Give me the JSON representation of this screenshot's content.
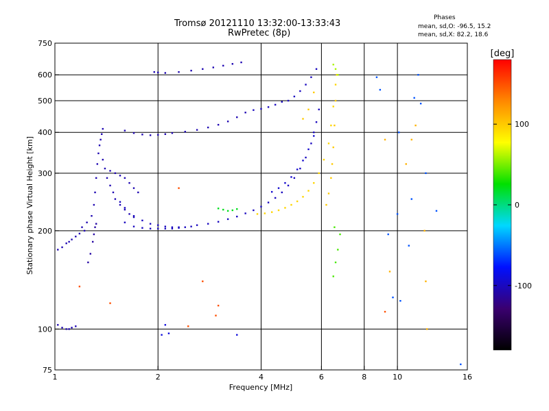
{
  "header": {
    "title": "Tromsø 20121110 13:32:00-13:33:43",
    "subtitle": "RwPretec (8p)"
  },
  "phase_box": {
    "heading": "Phases",
    "line_o": "mean, sd,O: -96.5, 15.2",
    "line_x": "mean, sd,X:  82.2, 18.6"
  },
  "colorbar": {
    "unit": "[deg]",
    "ticks": [
      {
        "value": 100,
        "label": "100"
      },
      {
        "value": 0,
        "label": "0"
      },
      {
        "value": -100,
        "label": "-100"
      }
    ],
    "range": [
      -180,
      180
    ],
    "colors": [
      "#000000",
      "#3a0070",
      "#0010ff",
      "#00d8ff",
      "#00e000",
      "#ffff00",
      "#ff8800",
      "#ff0000"
    ]
  },
  "chart_data": {
    "type": "scatter",
    "xlabel": "Frequency [MHz]",
    "ylabel": "Stationary phase Virtual Height [km]",
    "xscale": "log",
    "yscale": "log",
    "xlim": [
      1,
      16
    ],
    "ylim": [
      75,
      750
    ],
    "x_ticks": [
      {
        "value": 1,
        "label": "1"
      },
      {
        "value": 2,
        "label": "2"
      },
      {
        "value": 4,
        "label": "4"
      },
      {
        "value": 6,
        "label": "6"
      },
      {
        "value": 8,
        "label": "8"
      },
      {
        "value": 10,
        "label": "10"
      },
      {
        "value": 16,
        "label": "16"
      }
    ],
    "y_ticks": [
      {
        "value": 75,
        "label": "75"
      },
      {
        "value": 100,
        "label": "100"
      },
      {
        "value": 200,
        "label": "200"
      },
      {
        "value": 300,
        "label": "300"
      },
      {
        "value": 400,
        "label": "400"
      },
      {
        "value": 500,
        "label": "500"
      },
      {
        "value": 600,
        "label": "600"
      },
      {
        "value": 750,
        "label": "750"
      }
    ],
    "grid_x": [
      2,
      4,
      6,
      8,
      10
    ],
    "grid_y": [
      100,
      200,
      300,
      400,
      500,
      600
    ],
    "grid": true,
    "series": [
      {
        "phase": -105,
        "x": [
          1.02,
          1.05,
          1.08,
          1.1,
          1.12,
          1.15,
          1.18,
          1.22
        ],
        "y": [
          175,
          178,
          183,
          185,
          188,
          192,
          196,
          200
        ]
      },
      {
        "phase": -105,
        "x": [
          1.2,
          1.24,
          1.28,
          1.3,
          1.31,
          1.32,
          1.33,
          1.34,
          1.35,
          1.36,
          1.37,
          1.38
        ],
        "y": [
          205,
          212,
          222,
          240,
          262,
          290,
          320,
          345,
          365,
          380,
          395,
          410
        ]
      },
      {
        "phase": -110,
        "x": [
          1.25,
          1.27,
          1.29,
          1.3,
          1.31,
          1.32
        ],
        "y": [
          160,
          170,
          185,
          195,
          205,
          210
        ]
      },
      {
        "phase": -105,
        "x": [
          1.38,
          1.4,
          1.42,
          1.45,
          1.48,
          1.5,
          1.55,
          1.6,
          1.65,
          1.7
        ],
        "y": [
          330,
          310,
          290,
          275,
          262,
          250,
          240,
          232,
          225,
          220
        ]
      },
      {
        "phase": -105,
        "x": [
          1.45,
          1.5,
          1.55,
          1.6,
          1.65,
          1.7,
          1.75
        ],
        "y": [
          305,
          300,
          295,
          290,
          280,
          270,
          262
        ]
      },
      {
        "phase": -100,
        "x": [
          1.6,
          1.7,
          1.8,
          1.9,
          2.0,
          2.1,
          2.2,
          2.3,
          2.4,
          2.5,
          2.6,
          2.8,
          3.0,
          3.2,
          3.4,
          3.6,
          3.8,
          4.0,
          4.2,
          4.4,
          4.6,
          4.8,
          5.0,
          5.2,
          5.4,
          5.6,
          5.7,
          5.8,
          5.9
        ],
        "y": [
          212,
          206,
          204,
          203,
          203,
          203,
          203,
          204,
          205,
          206,
          208,
          210,
          213,
          217,
          221,
          226,
          231,
          237,
          244,
          252,
          262,
          275,
          290,
          310,
          335,
          370,
          400,
          430,
          470
        ]
      },
      {
        "phase": -100,
        "x": [
          1.55,
          1.6,
          1.7,
          1.8,
          1.9,
          2.0,
          2.1,
          2.2,
          2.3
        ],
        "y": [
          245,
          235,
          222,
          215,
          210,
          208,
          206,
          205,
          205
        ]
      },
      {
        "phase": -95,
        "x": [
          4.3,
          4.5,
          4.7,
          4.9,
          5.1,
          5.3,
          5.5,
          5.7
        ],
        "y": [
          263,
          270,
          280,
          292,
          308,
          328,
          355,
          390
        ]
      },
      {
        "phase": -105,
        "x": [
          1.6,
          1.7,
          1.8,
          1.9,
          2.0,
          2.1,
          2.2,
          2.4,
          2.6,
          2.8,
          3.0,
          3.2,
          3.4,
          3.6
        ],
        "y": [
          405,
          398,
          394,
          392,
          393,
          395,
          398,
          402,
          407,
          414,
          422,
          432,
          445,
          460
        ]
      },
      {
        "phase": -100,
        "x": [
          3.8,
          4.0,
          4.2,
          4.4,
          4.6
        ],
        "y": [
          468,
          472,
          478,
          486,
          496
        ]
      },
      {
        "phase": -105,
        "x": [
          1.95,
          2.0,
          2.1,
          2.3,
          2.5,
          2.7,
          2.9,
          3.1,
          3.3,
          3.5
        ],
        "y": [
          612,
          610,
          608,
          612,
          618,
          625,
          632,
          640,
          648,
          655
        ]
      },
      {
        "phase": -100,
        "x": [
          4.8,
          5.0,
          5.2,
          5.4,
          5.6,
          5.8
        ],
        "y": [
          500,
          515,
          535,
          560,
          590,
          625
        ]
      },
      {
        "phase": 95,
        "x": [
          3.9,
          4.1,
          4.3,
          4.5,
          4.7,
          4.9,
          5.1,
          5.3,
          5.5,
          5.7,
          5.9,
          6.1,
          6.3,
          6.4,
          6.5,
          6.6
        ],
        "y": [
          225,
          226,
          228,
          231,
          235,
          240,
          246,
          254,
          265,
          280,
          300,
          330,
          370,
          420,
          480,
          560
        ]
      },
      {
        "phase": 100,
        "x": [
          6.2,
          6.3,
          6.4,
          6.45,
          6.5,
          6.55,
          6.6,
          6.65
        ],
        "y": [
          240,
          260,
          290,
          320,
          360,
          420,
          500,
          600
        ]
      },
      {
        "phase": 20,
        "x": [
          3.0,
          3.1,
          3.2,
          3.3,
          3.4
        ],
        "y": [
          234,
          232,
          230,
          231,
          233
        ]
      },
      {
        "phase": 100,
        "x": [
          5.3,
          5.5,
          5.7
        ],
        "y": [
          440,
          470,
          530
        ]
      },
      {
        "phase": 60,
        "x": [
          6.5,
          6.6,
          6.7
        ],
        "y": [
          645,
          625,
          600
        ]
      },
      {
        "phase": -105,
        "x": [
          1.02,
          1.05,
          1.08,
          1.1,
          1.12,
          1.15
        ],
        "y": [
          103,
          101,
          100,
          100,
          101,
          102
        ]
      },
      {
        "phase": -90,
        "x": [
          2.05,
          2.1,
          2.15,
          3.4
        ],
        "y": [
          96,
          103,
          97,
          96
        ]
      },
      {
        "phase": 40,
        "x": [
          6.5,
          6.6,
          6.7,
          6.55,
          6.8
        ],
        "y": [
          145,
          160,
          175,
          205,
          195
        ]
      },
      {
        "phase": -60,
        "x": [
          8.7,
          8.9,
          9.4,
          9.7,
          10.0,
          10.1,
          10.2,
          10.8,
          11.0,
          11.2,
          11.5,
          11.7,
          12.1,
          13.0,
          15.3
        ],
        "y": [
          590,
          540,
          195,
          125,
          225,
          400,
          122,
          180,
          250,
          510,
          600,
          490,
          300,
          230,
          78
        ]
      },
      {
        "phase": 110,
        "x": [
          9.2,
          9.5,
          10.6,
          11.0,
          11.3,
          12.0,
          12.1,
          12.2
        ],
        "y": [
          380,
          150,
          320,
          380,
          420,
          200,
          140,
          100
        ]
      },
      {
        "phase": 150,
        "x": [
          1.18,
          1.45,
          2.3,
          2.45,
          2.7,
          2.95,
          3.0,
          9.2
        ],
        "y": [
          135,
          120,
          270,
          102,
          140,
          110,
          118,
          113
        ]
      }
    ]
  }
}
